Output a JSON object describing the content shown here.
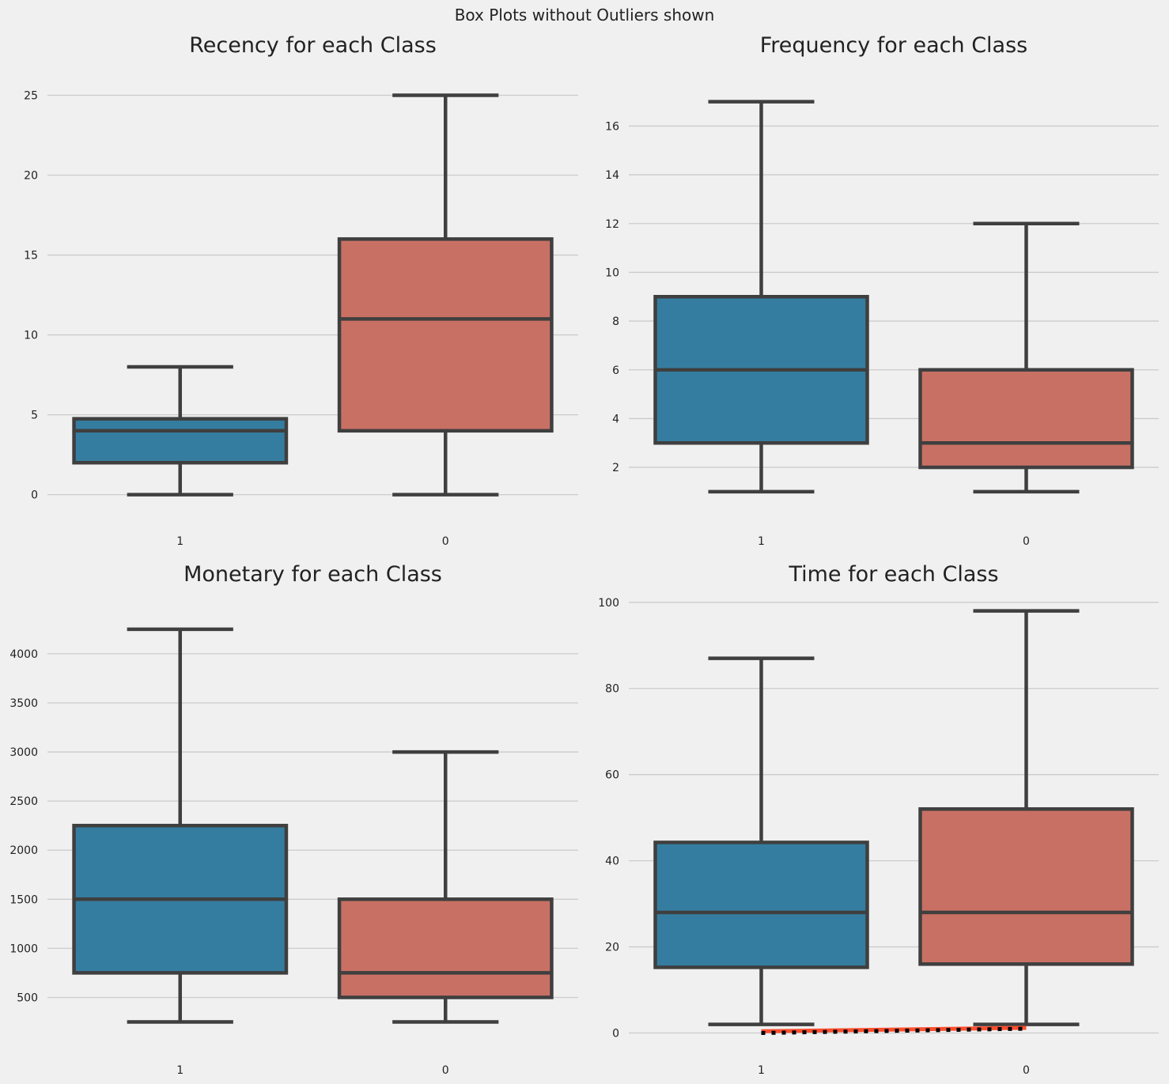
{
  "figure": {
    "suptitle": "Box Plots without Outliers shown"
  },
  "colors": {
    "background": "#f0f0f0",
    "class_1": "#357da0",
    "class_0": "#c97064",
    "box_edge": "#3f3f3f",
    "grid": "#cbcbcb",
    "trend_line": "#fc4f30",
    "dotted_line": "#000000"
  },
  "chart_data": [
    {
      "type": "box",
      "title": "Recency for each Class",
      "categories": [
        "1",
        "0"
      ],
      "ylim": [
        -1.8,
        27.5
      ],
      "yticks": [
        0,
        5,
        10,
        15,
        20,
        25
      ],
      "boxes": [
        {
          "category": "1",
          "whisker_low": 0,
          "q1": 2,
          "median": 4,
          "q3": 4.75,
          "whisker_high": 8
        },
        {
          "category": "0",
          "whisker_low": 0,
          "q1": 4,
          "median": 11,
          "q3": 16,
          "whisker_high": 25
        }
      ],
      "grid": true
    },
    {
      "type": "box",
      "title": "Frequency for each Class",
      "categories": [
        "1",
        "0"
      ],
      "ylim": [
        -0.3,
        18.9
      ],
      "yticks": [
        2,
        4,
        6,
        8,
        10,
        12,
        14,
        16
      ],
      "boxes": [
        {
          "category": "1",
          "whisker_low": 1,
          "q1": 3,
          "median": 6,
          "q3": 9,
          "whisker_high": 17
        },
        {
          "category": "0",
          "whisker_low": 1,
          "q1": 2,
          "median": 3,
          "q3": 6,
          "whisker_high": 12
        }
      ],
      "grid": true
    },
    {
      "type": "box",
      "title": "Monetary for each Class",
      "categories": [
        "1",
        "0"
      ],
      "ylim": [
        -60,
        4700
      ],
      "yticks": [
        500,
        1000,
        1500,
        2000,
        2500,
        3000,
        3500,
        4000
      ],
      "boxes": [
        {
          "category": "1",
          "whisker_low": 250,
          "q1": 750,
          "median": 1500,
          "q3": 2250,
          "whisker_high": 4250
        },
        {
          "category": "0",
          "whisker_low": 250,
          "q1": 500,
          "median": 750,
          "q3": 1500,
          "whisker_high": 3000
        }
      ],
      "grid": true
    },
    {
      "type": "box",
      "title": "Time for each Class",
      "categories": [
        "1",
        "0"
      ],
      "ylim": [
        -4.5,
        104
      ],
      "yticks": [
        0,
        20,
        40,
        60,
        80,
        100
      ],
      "boxes": [
        {
          "category": "1",
          "whisker_low": 2,
          "q1": 15.25,
          "median": 28,
          "q3": 44.25,
          "whisker_high": 87
        },
        {
          "category": "0",
          "whisker_low": 2,
          "q1": 16,
          "median": 28,
          "q3": 52,
          "whisker_high": 98
        }
      ],
      "overlay_lines": [
        {
          "style": "solid",
          "color": "#fc4f30",
          "x": [
            "1",
            "0"
          ],
          "y": [
            0.4,
            1.2
          ]
        },
        {
          "style": "dotted",
          "color": "#000000",
          "x": [
            "1",
            "0"
          ],
          "y": [
            0,
            1
          ]
        }
      ],
      "grid": true
    }
  ]
}
